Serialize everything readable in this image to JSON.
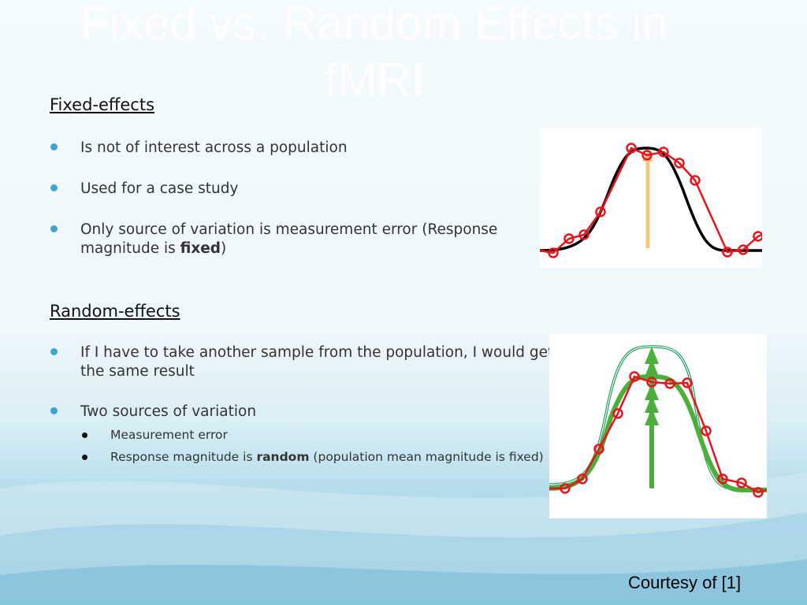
{
  "slide": {
    "title": "Fixed vs. Random Effects in fMRI",
    "fixed_section": {
      "heading": "Fixed-effects",
      "bullets": [
        "Is not of interest across a population",
        "Used for a case study",
        {
          "pre": "Only source of variation is measurement error (Response magnitude is ",
          "bold": "fixed",
          "post": ")"
        }
      ]
    },
    "random_section": {
      "heading": "Random-effects",
      "bullets": [
        "If I have to take another sample from the population, I would get the same result",
        "Two sources of variation"
      ],
      "sub_bullets": [
        "Measurement error",
        {
          "pre": "Response magnitude is ",
          "bold": "random",
          "post": " (population mean magnitude is fixed)"
        }
      ]
    },
    "credit": "Courtesy of [1]",
    "colors": {
      "bullet": "#3fa3cf",
      "data_points": "#e8141c",
      "fixed_arrow": "#f6c77c",
      "random_arrow": "#4caf3c"
    }
  }
}
